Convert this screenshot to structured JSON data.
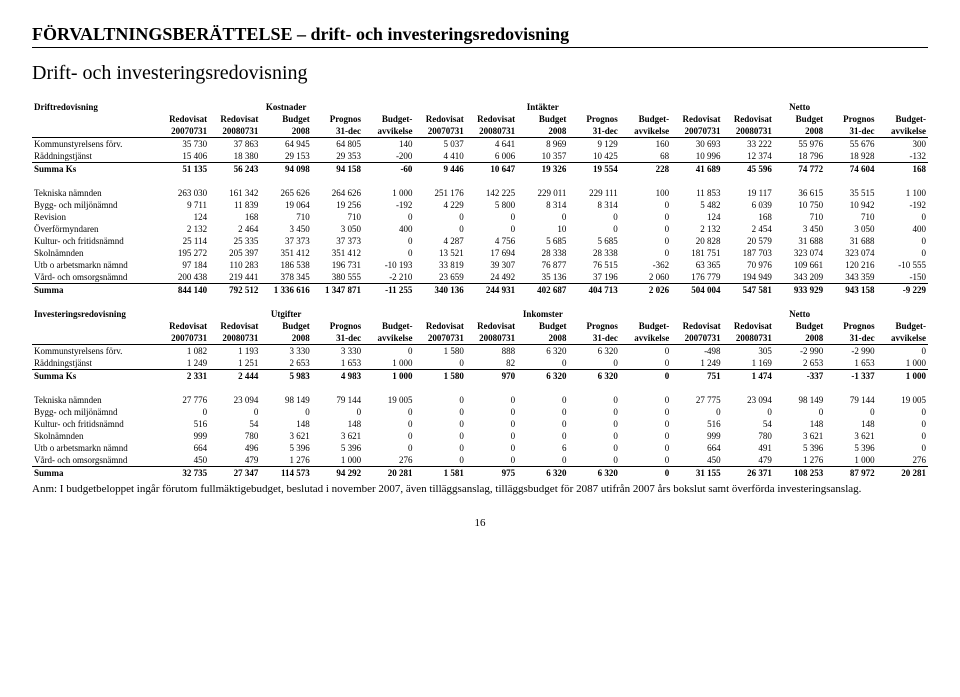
{
  "header": {
    "title": "FÖRVALTNINGSBERÄTTELSE – drift- och investeringsredovisning",
    "subtitle": "Drift- och investeringsredovisning"
  },
  "drift": {
    "label": "Driftredovisning",
    "groups": [
      "Kostnader",
      "Intäkter",
      "Netto"
    ],
    "cols": [
      "Redovisat",
      "Redovisat",
      "Budget",
      "Prognos",
      "Budget-",
      "Redovisat",
      "Redovisat",
      "Budget",
      "Prognos",
      "Budget-",
      "Redovisat",
      "Redovisat",
      "Budget",
      "Prognos",
      "Budget-"
    ],
    "sub": [
      "20070731",
      "20080731",
      "2008",
      "31-dec",
      "avvikelse",
      "20070731",
      "20080731",
      "2008",
      "31-dec",
      "avvikelse",
      "20070731",
      "20080731",
      "2008",
      "31-dec",
      "avvikelse"
    ],
    "block1": [
      {
        "label": "Kommunstyrelsens förv.",
        "v": [
          "35 730",
          "37 863",
          "64 945",
          "64 805",
          "140",
          "5 037",
          "4 641",
          "8 969",
          "9 129",
          "160",
          "30 693",
          "33 222",
          "55 976",
          "55 676",
          "300"
        ]
      },
      {
        "label": "Räddningstjänst",
        "v": [
          "15 406",
          "18 380",
          "29 153",
          "29 353",
          "-200",
          "4 410",
          "6 006",
          "10 357",
          "10 425",
          "68",
          "10 996",
          "12 374",
          "18 796",
          "18 928",
          "-132"
        ]
      }
    ],
    "sum1": {
      "label": "Summa Ks",
      "v": [
        "51 135",
        "56 243",
        "94 098",
        "94 158",
        "-60",
        "9 446",
        "10 647",
        "19 326",
        "19 554",
        "228",
        "41 689",
        "45 596",
        "74 772",
        "74 604",
        "168"
      ]
    },
    "block2": [
      {
        "label": "Tekniska nämnden",
        "v": [
          "263 030",
          "161 342",
          "265 626",
          "264 626",
          "1 000",
          "251 176",
          "142 225",
          "229 011",
          "229 111",
          "100",
          "11 853",
          "19 117",
          "36 615",
          "35 515",
          "1 100"
        ]
      },
      {
        "label": "Bygg- och miljönämnd",
        "v": [
          "9 711",
          "11 839",
          "19 064",
          "19 256",
          "-192",
          "4 229",
          "5 800",
          "8 314",
          "8 314",
          "0",
          "5 482",
          "6 039",
          "10 750",
          "10 942",
          "-192"
        ]
      },
      {
        "label": "Revision",
        "v": [
          "124",
          "168",
          "710",
          "710",
          "0",
          "0",
          "0",
          "0",
          "0",
          "0",
          "124",
          "168",
          "710",
          "710",
          "0"
        ]
      },
      {
        "label": "Överförmyndaren",
        "v": [
          "2 132",
          "2 464",
          "3 450",
          "3 050",
          "400",
          "0",
          "0",
          "10",
          "0",
          "0",
          "2 132",
          "2 454",
          "3 450",
          "3 050",
          "400"
        ]
      },
      {
        "label": "Kultur- och fritidsnämnd",
        "v": [
          "25 114",
          "25 335",
          "37 373",
          "37 373",
          "0",
          "4 287",
          "4 756",
          "5 685",
          "5 685",
          "0",
          "20 828",
          "20 579",
          "31 688",
          "31 688",
          "0"
        ]
      },
      {
        "label": "Skolnämnden",
        "v": [
          "195 272",
          "205 397",
          "351 412",
          "351 412",
          "0",
          "13 521",
          "17 694",
          "28 338",
          "28 338",
          "0",
          "181 751",
          "187 703",
          "323 074",
          "323 074",
          "0"
        ]
      },
      {
        "label": "Utb o arbetsmarkn nämnd",
        "v": [
          "97 184",
          "110 283",
          "186 538",
          "196 731",
          "-10 193",
          "33 819",
          "39 307",
          "76 877",
          "76 515",
          "-362",
          "63 365",
          "70 976",
          "109 661",
          "120 216",
          "-10 555"
        ]
      },
      {
        "label": "Vård- och omsorgsnämnd",
        "v": [
          "200 438",
          "219 441",
          "378 345",
          "380 555",
          "-2 210",
          "23 659",
          "24 492",
          "35 136",
          "37 196",
          "2 060",
          "176 779",
          "194 949",
          "343 209",
          "343 359",
          "-150"
        ]
      }
    ],
    "total": {
      "label": "Summa",
      "v": [
        "844 140",
        "792 512",
        "1 336 616",
        "1 347 871",
        "-11 255",
        "340 136",
        "244 931",
        "402 687",
        "404 713",
        "2 026",
        "504 004",
        "547 581",
        "933 929",
        "943 158",
        "-9 229"
      ]
    }
  },
  "invest": {
    "label": "Investeringsredovisning",
    "groups": [
      "Utgifter",
      "Inkomster",
      "Netto"
    ],
    "cols": [
      "Redovisat",
      "Redovisat",
      "Budget",
      "Prognos",
      "Budget-",
      "Redovisat",
      "Redovisat",
      "Budget",
      "Prognos",
      "Budget-",
      "Redovisat",
      "Redovisat",
      "Budget",
      "Prognos",
      "Budget-"
    ],
    "sub": [
      "20070731",
      "20080731",
      "2008",
      "31-dec",
      "avvikelse",
      "20070731",
      "20080731",
      "2008",
      "31-dec",
      "avvikelse",
      "20070731",
      "20080731",
      "2008",
      "31-dec",
      "avvikelse"
    ],
    "block1": [
      {
        "label": "Kommunstyrelsens förv.",
        "v": [
          "1 082",
          "1 193",
          "3 330",
          "3 330",
          "0",
          "1 580",
          "888",
          "6 320",
          "6 320",
          "0",
          "-498",
          "305",
          "-2 990",
          "-2 990",
          "0"
        ]
      },
      {
        "label": "Räddningstjänst",
        "v": [
          "1 249",
          "1 251",
          "2 653",
          "1 653",
          "1 000",
          "0",
          "82",
          "0",
          "0",
          "0",
          "1 249",
          "1 169",
          "2 653",
          "1 653",
          "1 000"
        ]
      }
    ],
    "sum1": {
      "label": "Summa Ks",
      "v": [
        "2 331",
        "2 444",
        "5 983",
        "4 983",
        "1 000",
        "1 580",
        "970",
        "6 320",
        "6 320",
        "0",
        "751",
        "1 474",
        "-337",
        "-1 337",
        "1 000"
      ]
    },
    "block2": [
      {
        "label": "Tekniska nämnden",
        "v": [
          "27 776",
          "23 094",
          "98 149",
          "79 144",
          "19 005",
          "0",
          "0",
          "0",
          "0",
          "0",
          "27 775",
          "23 094",
          "98 149",
          "79 144",
          "19 005"
        ]
      },
      {
        "label": "Bygg- och miljönämnd",
        "v": [
          "0",
          "0",
          "0",
          "0",
          "0",
          "0",
          "0",
          "0",
          "0",
          "0",
          "0",
          "0",
          "0",
          "0",
          "0"
        ]
      },
      {
        "label": "Kultur- och fritidsnämnd",
        "v": [
          "516",
          "54",
          "148",
          "148",
          "0",
          "0",
          "0",
          "0",
          "0",
          "0",
          "516",
          "54",
          "148",
          "148",
          "0"
        ]
      },
      {
        "label": "Skolnämnden",
        "v": [
          "999",
          "780",
          "3 621",
          "3 621",
          "0",
          "0",
          "0",
          "0",
          "0",
          "0",
          "999",
          "780",
          "3 621",
          "3 621",
          "0"
        ]
      },
      {
        "label": "Utb o arbetsmarkn nämnd",
        "v": [
          "664",
          "496",
          "5 396",
          "5 396",
          "0",
          "0",
          "0",
          "6",
          "0",
          "0",
          "664",
          "491",
          "5 396",
          "5 396",
          "0"
        ]
      },
      {
        "label": "Vård- och omsorgsnämnd",
        "v": [
          "450",
          "479",
          "1 276",
          "1 000",
          "276",
          "0",
          "0",
          "0",
          "0",
          "0",
          "450",
          "479",
          "1 276",
          "1 000",
          "276"
        ]
      }
    ],
    "total": {
      "label": "Summa",
      "v": [
        "32 735",
        "27 347",
        "114 573",
        "94 292",
        "20 281",
        "1 581",
        "975",
        "6 320",
        "6 320",
        "0",
        "31 155",
        "26 371",
        "108 253",
        "87 972",
        "20 281"
      ]
    }
  },
  "note": "Anm: I budgetbeloppet ingår förutom fullmäktigebudget, beslutad i november 2007, även tilläggsanslag, tilläggsbudget för 2087 utifrån 2007 års bokslut samt överförda investeringsanslag.",
  "page": "16"
}
